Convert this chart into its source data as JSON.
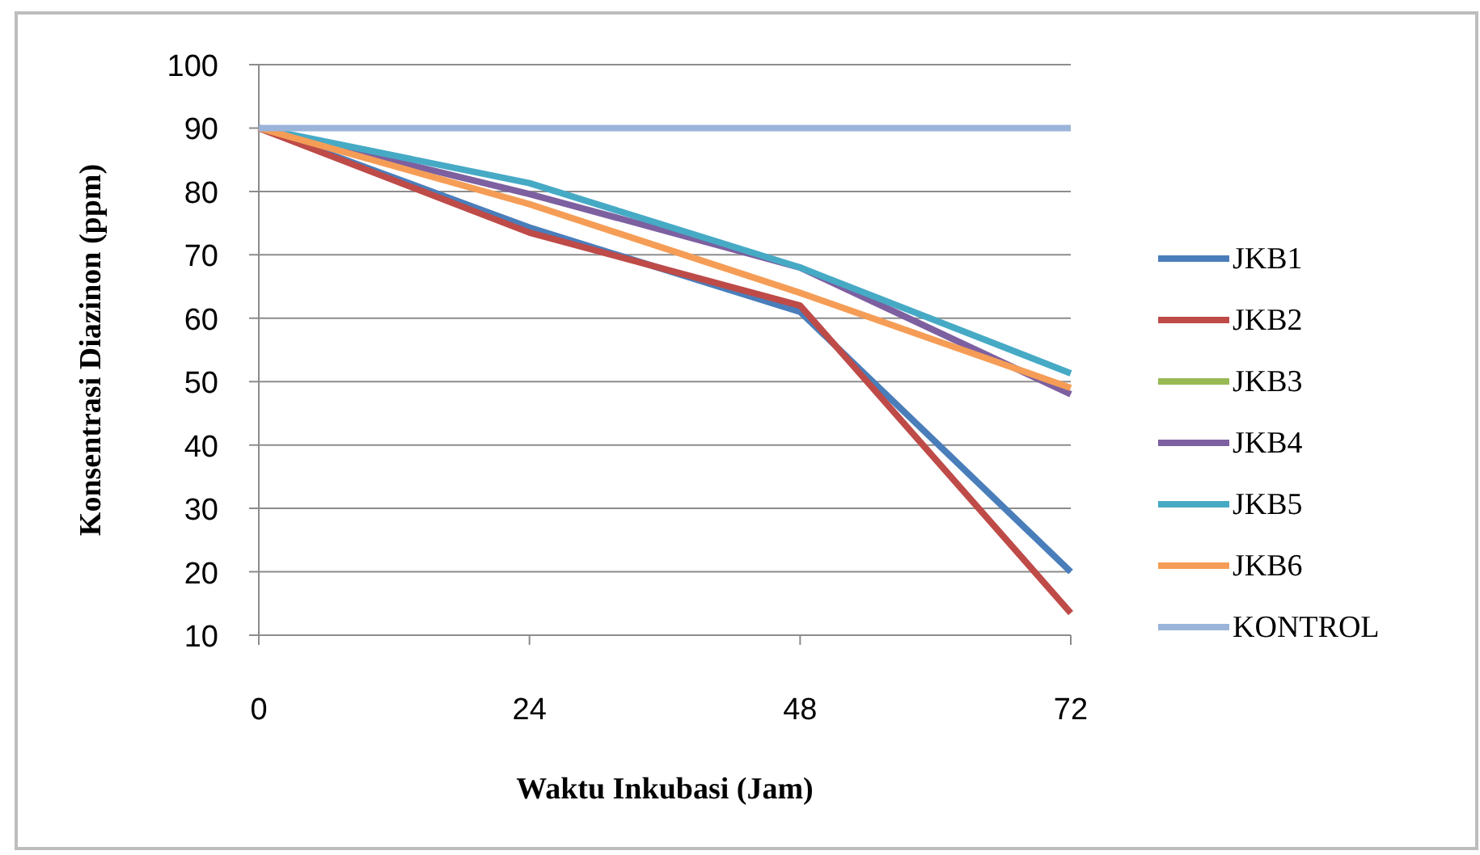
{
  "chart_data": {
    "type": "line",
    "xlabel": "Waktu Inkubasi (Jam)",
    "ylabel": "Konsentrasi Diazinon (ppm)",
    "x": [
      0,
      24,
      48,
      72
    ],
    "xlim": [
      0,
      72
    ],
    "xticks": [
      0,
      24,
      48,
      72
    ],
    "ylim": [
      10,
      100
    ],
    "yticks": [
      10,
      20,
      30,
      40,
      50,
      60,
      70,
      80,
      90,
      100
    ],
    "grid": "y",
    "legend": "right",
    "marker": "none",
    "line_style": "solid",
    "series": [
      {
        "name": "JKB1",
        "color": "#4a7ebb",
        "values": [
          90,
          74.3,
          61,
          20
        ]
      },
      {
        "name": "JKB2",
        "color": "#be4b48",
        "values": [
          90,
          73.5,
          62,
          13.5
        ]
      },
      {
        "name": "JKB3",
        "color": "#98b954",
        "values": [
          null,
          null,
          null,
          null
        ]
      },
      {
        "name": "JKB4",
        "color": "#7d60a0",
        "values": [
          90,
          79.6,
          68,
          48
        ]
      },
      {
        "name": "JKB5",
        "color": "#46aac5",
        "values": [
          90,
          81.3,
          68,
          51.3
        ]
      },
      {
        "name": "JKB6",
        "color": "#f59d56",
        "values": [
          90,
          78,
          64,
          49
        ]
      },
      {
        "name": "KONTROL",
        "color": "#9bb4d9",
        "values": [
          90,
          90,
          90,
          90
        ]
      }
    ]
  }
}
